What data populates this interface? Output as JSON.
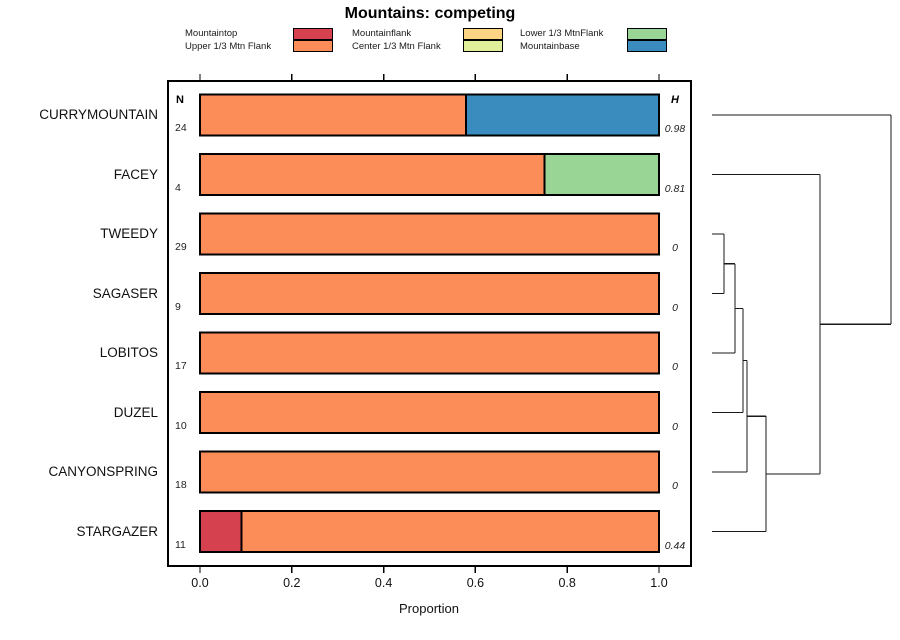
{
  "title": "Mountains: competing",
  "legend": {
    "items": [
      {
        "label": "Mountaintop",
        "color": "#D5414F"
      },
      {
        "label": "Upper 1/3 Mtn Flank",
        "color": "#FC8D59"
      },
      {
        "label": "Mountainflank",
        "color": "#FDD384"
      },
      {
        "label": "Center 1/3 Mtn Flank",
        "color": "#E0EF9A"
      },
      {
        "label": "Lower 1/3 MtnFlank",
        "color": "#99D594"
      },
      {
        "label": "Mountainbase",
        "color": "#3A8CBF"
      }
    ]
  },
  "columns": {
    "n_header": "N",
    "h_header": "H"
  },
  "axes": {
    "xlabel": "Proportion",
    "xtick_labels": [
      "0.0",
      "0.2",
      "0.4",
      "0.6",
      "0.8",
      "1.0"
    ]
  },
  "chart_data": {
    "type": "bar",
    "orientation": "horizontal",
    "stacked": true,
    "title": "Mountains: competing",
    "xlabel": "Proportion",
    "xlim": [
      0,
      1
    ],
    "xticks": [
      0.0,
      0.2,
      0.4,
      0.6,
      0.8,
      1.0
    ],
    "grid": false,
    "legend_position": "top",
    "categories": [
      "CURRYMOUNTAIN",
      "FACEY",
      "TWEEDY",
      "SAGASER",
      "LOBITOS",
      "DUZEL",
      "CANYONSPRING",
      "STARGAZER"
    ],
    "n_values": [
      24,
      4,
      29,
      9,
      17,
      10,
      18,
      11
    ],
    "h_values": [
      "0.98",
      "0.81",
      "0",
      "0",
      "0",
      "0",
      "0",
      "0.44"
    ],
    "series": [
      {
        "name": "Mountaintop",
        "color": "#D5414F",
        "values": [
          0,
          0,
          0,
          0,
          0,
          0,
          0,
          0.09
        ]
      },
      {
        "name": "Upper 1/3 Mtn Flank",
        "color": "#FC8D59",
        "values": [
          0.58,
          0.75,
          1,
          1,
          1,
          1,
          1,
          0.91
        ]
      },
      {
        "name": "Mountainflank",
        "color": "#FDD384",
        "values": [
          0,
          0,
          0,
          0,
          0,
          0,
          0,
          0
        ]
      },
      {
        "name": "Center 1/3 Mtn Flank",
        "color": "#E0EF9A",
        "values": [
          0,
          0,
          0,
          0,
          0,
          0,
          0,
          0
        ]
      },
      {
        "name": "Lower 1/3 MtnFlank",
        "color": "#99D594",
        "values": [
          0,
          0.25,
          0,
          0,
          0,
          0,
          0,
          0
        ]
      },
      {
        "name": "Mountainbase",
        "color": "#3A8CBF",
        "values": [
          0.42,
          0,
          0,
          0,
          0,
          0,
          0,
          0
        ]
      }
    ],
    "dendrogram": {
      "leaf_order": [
        "CURRYMOUNTAIN",
        "FACEY",
        "TWEEDY",
        "SAGASER",
        "LOBITOS",
        "DUZEL",
        "CANYONSPRING",
        "STARGAZER"
      ],
      "merges": [
        {
          "a": "TWEEDY",
          "b": "SAGASER",
          "height": 0.067
        },
        {
          "a": "@0",
          "b": "LOBITOS",
          "height": 0.128
        },
        {
          "a": "@1",
          "b": "DUZEL",
          "height": 0.173
        },
        {
          "a": "@2",
          "b": "CANYONSPRING",
          "height": 0.196
        },
        {
          "a": "@3",
          "b": "STARGAZER",
          "height": 0.302
        },
        {
          "a": "@4",
          "b": "FACEY",
          "height": 0.603
        },
        {
          "a": "@5",
          "b": "CURRYMOUNTAIN",
          "height": 1.0
        }
      ]
    }
  }
}
